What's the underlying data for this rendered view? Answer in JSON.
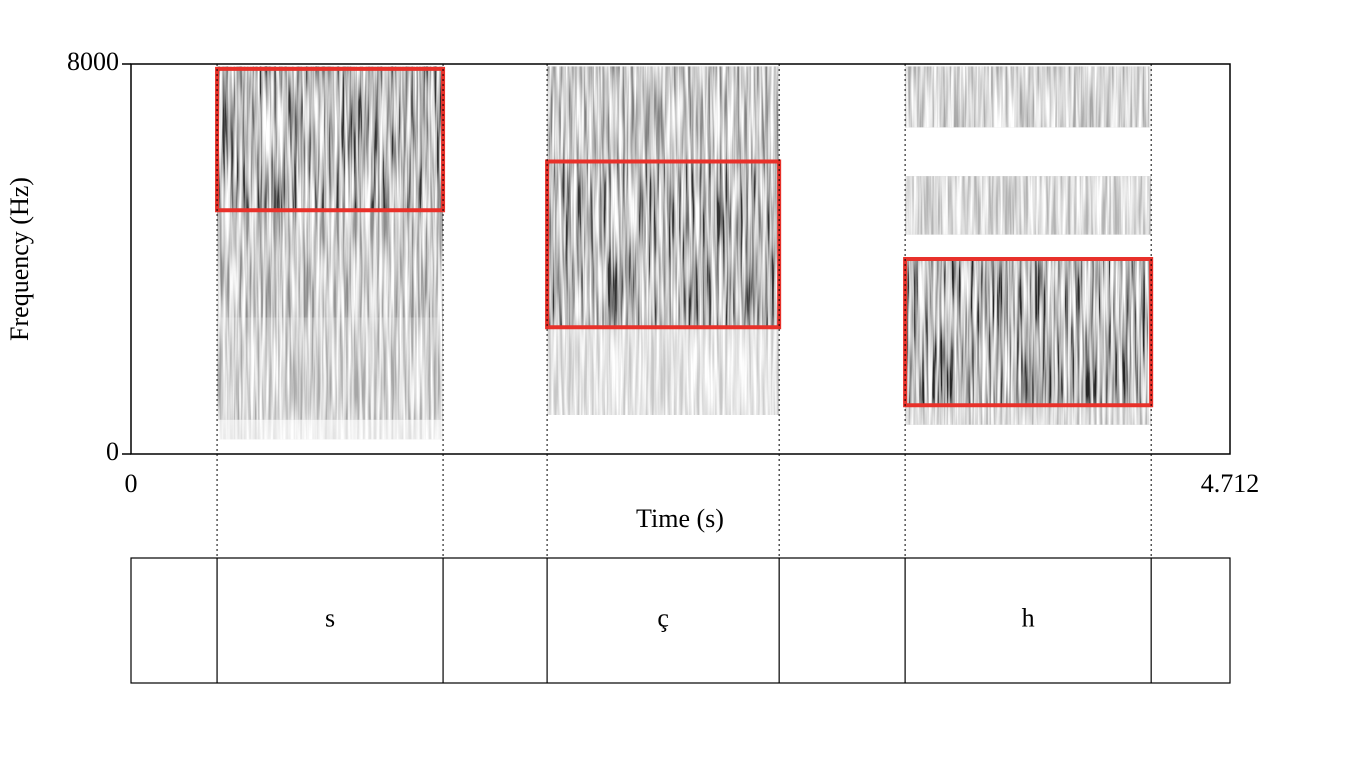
{
  "chart_data": {
    "type": "spectrogram",
    "x_label": "Time (s)",
    "y_label": "Frequency (Hz)",
    "xlim": [
      0,
      4.712
    ],
    "ylim": [
      0,
      8000
    ],
    "xticks": [
      0,
      4.712
    ],
    "yticks": [
      0,
      8000
    ],
    "highlight_color": "#e8312a",
    "intervals": [
      {
        "label": "s",
        "start": 0.369,
        "end": 1.338,
        "highlight": [
          5000,
          7900
        ],
        "bands": [
          {
            "fmin": 5000,
            "fmax": 7950,
            "level": 0.8
          },
          {
            "fmin": 2800,
            "fmax": 5000,
            "level": 0.45
          },
          {
            "fmin": 700,
            "fmax": 2800,
            "level": 0.35
          },
          {
            "fmin": 300,
            "fmax": 700,
            "level": 0.12
          }
        ]
      },
      {
        "label": "ç",
        "start": 1.784,
        "end": 2.779,
        "highlight": [
          2600,
          6000
        ],
        "bands": [
          {
            "fmin": 6000,
            "fmax": 7950,
            "level": 0.5
          },
          {
            "fmin": 2600,
            "fmax": 6000,
            "level": 0.8
          },
          {
            "fmin": 800,
            "fmax": 2600,
            "level": 0.22
          }
        ]
      },
      {
        "label": "h",
        "start": 3.319,
        "end": 4.374,
        "highlight": [
          1000,
          4000
        ],
        "bands": [
          {
            "fmin": 6700,
            "fmax": 7950,
            "level": 0.35
          },
          {
            "fmin": 4500,
            "fmax": 5700,
            "level": 0.3
          },
          {
            "fmin": 1000,
            "fmax": 4000,
            "level": 0.85
          },
          {
            "fmin": 600,
            "fmax": 1000,
            "level": 0.3
          }
        ]
      }
    ]
  }
}
